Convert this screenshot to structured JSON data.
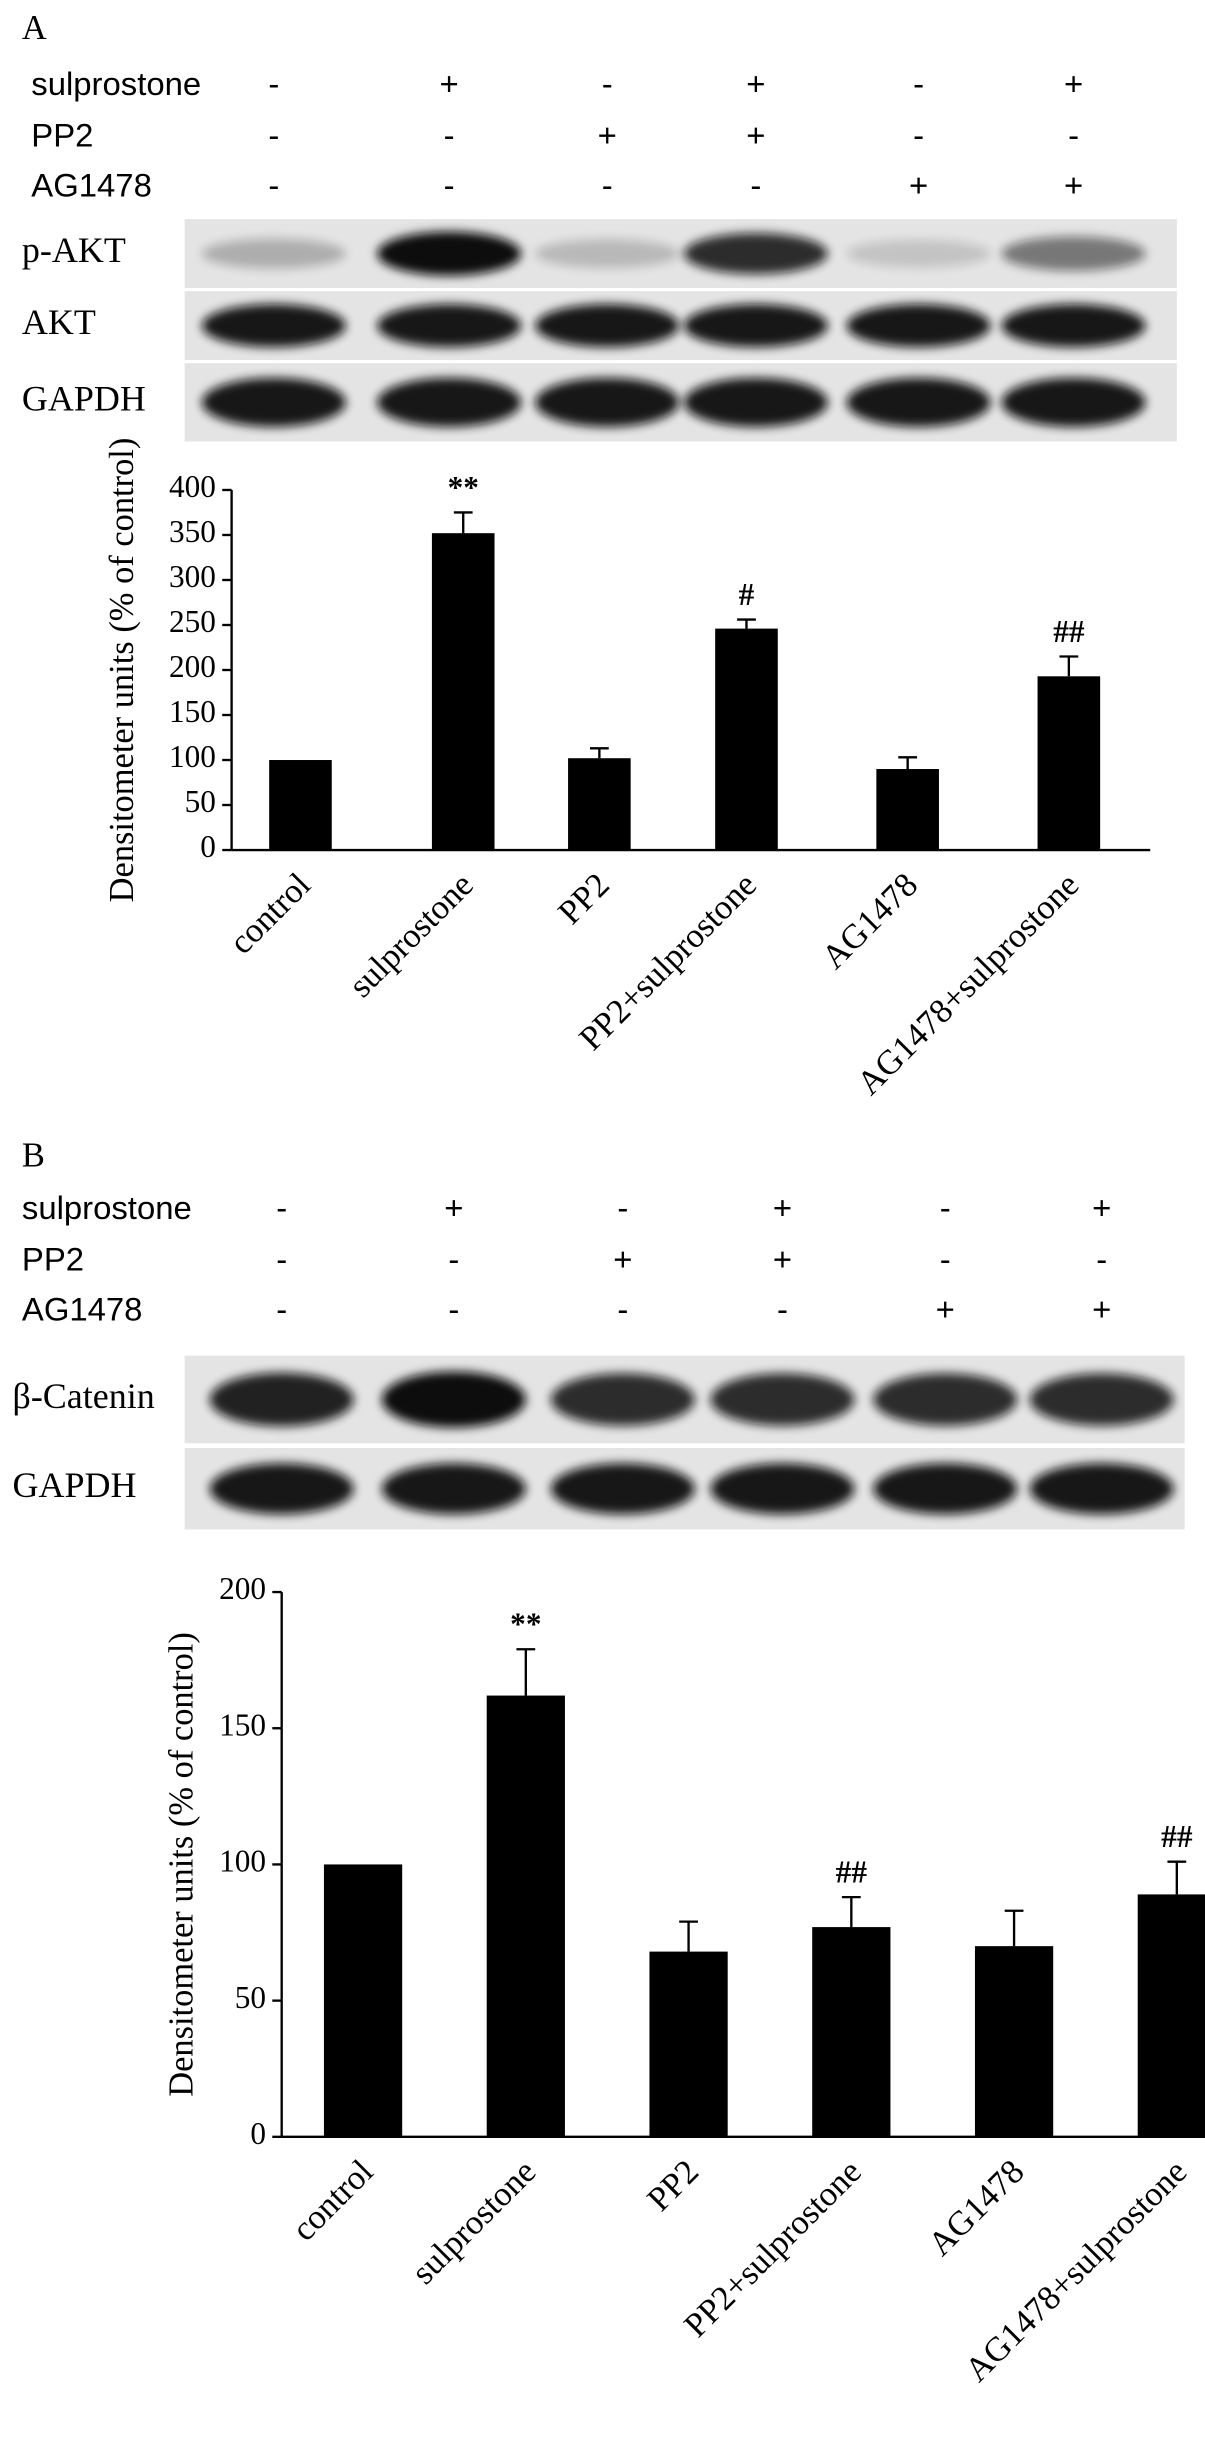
{
  "panels": [
    {
      "label": "A",
      "treatments": [
        {
          "name": "sulprostone",
          "signs": [
            "-",
            "+",
            "-",
            "+",
            "-",
            "+"
          ]
        },
        {
          "name": "PP2",
          "signs": [
            "-",
            "-",
            "+",
            "+",
            "-",
            "-"
          ]
        },
        {
          "name": "AG1478",
          "signs": [
            "-",
            "-",
            "-",
            "-",
            "+",
            "+"
          ]
        }
      ],
      "blots": [
        "p-AKT",
        "AKT",
        "GAPDH"
      ]
    },
    {
      "label": "B",
      "treatments": [
        {
          "name": "sulprostone",
          "signs": [
            "-",
            "+",
            "-",
            "+",
            "-",
            "+"
          ]
        },
        {
          "name": "PP2",
          "signs": [
            "-",
            "-",
            "+",
            "+",
            "-",
            "-"
          ]
        },
        {
          "name": "AG1478",
          "signs": [
            "-",
            "-",
            "-",
            "-",
            "+",
            "+"
          ]
        }
      ],
      "blots": [
        "β-Catenin",
        "GAPDH"
      ]
    }
  ],
  "chart_data": [
    {
      "type": "bar",
      "y_label": "Densitometer units (% of control)",
      "categories": [
        "control",
        "sulprostone",
        "PP2",
        "PP2+sulprostone",
        "AG1478",
        "AG1478+sulprostone"
      ],
      "values": [
        100,
        352,
        102,
        246,
        90,
        193
      ],
      "errors": [
        null,
        23,
        11,
        10,
        13,
        22
      ],
      "annotations": [
        null,
        "**",
        null,
        "#",
        null,
        "##"
      ],
      "color": "#000000",
      "ylim": [
        0,
        400
      ],
      "yticks": [
        0,
        50,
        100,
        150,
        200,
        250,
        300,
        350,
        400
      ]
    },
    {
      "type": "bar",
      "y_label": "Densitometer units (% of control)",
      "categories": [
        "control",
        "sulprostone",
        "PP2",
        "PP2+sulprostone",
        "AG1478",
        "AG1478+sulprostone"
      ],
      "values": [
        100,
        162,
        68,
        77,
        70,
        89
      ],
      "errors": [
        null,
        17,
        11,
        11,
        13,
        12
      ],
      "annotations": [
        null,
        "**",
        null,
        "##",
        null,
        "##"
      ],
      "color": "#000000",
      "ylim": [
        0,
        200
      ],
      "yticks": [
        0,
        50,
        100,
        150,
        200
      ]
    }
  ]
}
